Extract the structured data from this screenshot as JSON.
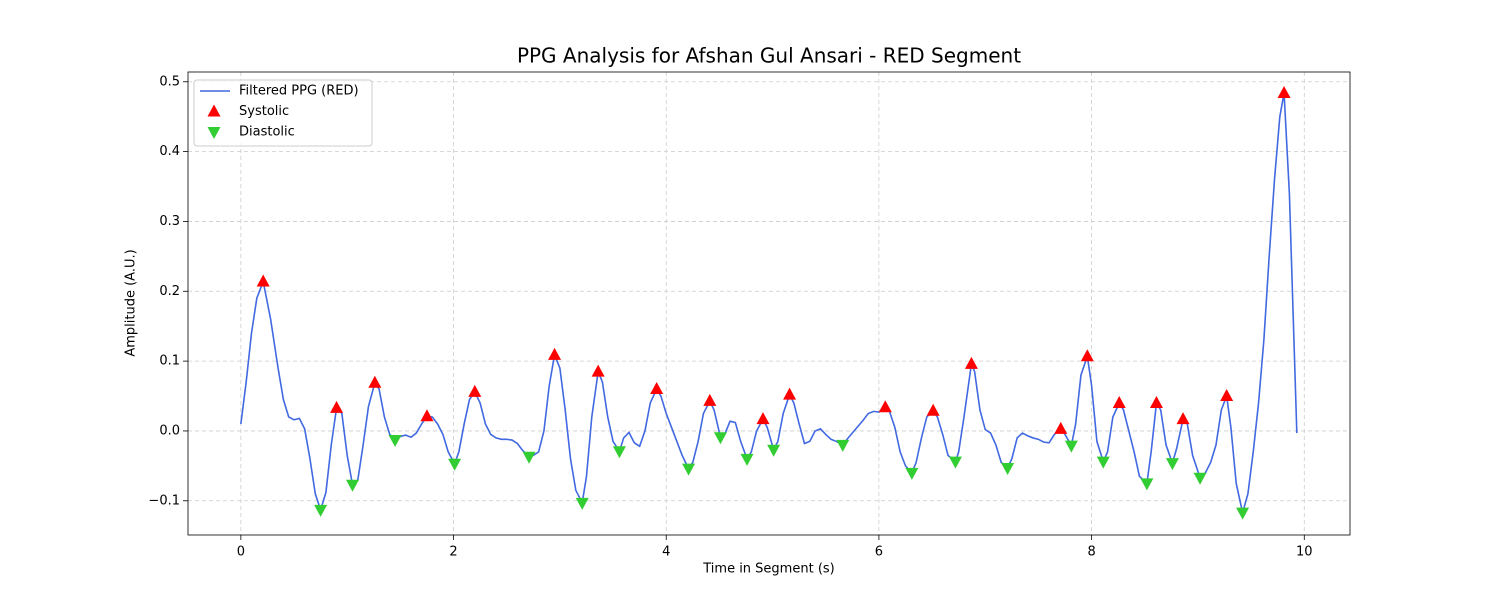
{
  "chart_data": {
    "type": "line",
    "title": "PPG Analysis for Afshan Gul Ansari - RED Segment",
    "x_label": "Time in Segment (s)",
    "y_label": "Amplitude (A.U.)",
    "xlim": [
      -0.497,
      10.43
    ],
    "ylim": [
      -0.149,
      0.514
    ],
    "xticks": [
      0,
      2,
      4,
      6,
      8,
      10
    ],
    "yticks": [
      {
        "value": -0.1,
        "label": "−0.1"
      },
      {
        "value": 0,
        "label": "0.0"
      },
      0.1,
      0.2,
      0.3,
      0.4,
      0.5
    ],
    "grid": true,
    "legend": "upper left",
    "series": [
      {
        "name": "Filtered PPG (RED)",
        "type": "line",
        "color": "#4169e1",
        "x": [
          0,
          0.05,
          0.1,
          0.15,
          0.21,
          0.28,
          0.35,
          0.4,
          0.45,
          0.5,
          0.55,
          0.6,
          0.65,
          0.7,
          0.75,
          0.8,
          0.85,
          0.9,
          0.95,
          1.0,
          1.05,
          1.1,
          1.15,
          1.2,
          1.26,
          1.3,
          1.35,
          1.4,
          1.45,
          1.5,
          1.55,
          1.6,
          1.65,
          1.7,
          1.75,
          1.8,
          1.85,
          1.9,
          1.95,
          2.01,
          2.05,
          2.1,
          2.15,
          2.2,
          2.25,
          2.3,
          2.35,
          2.4,
          2.45,
          2.5,
          2.55,
          2.6,
          2.65,
          2.71,
          2.75,
          2.8,
          2.85,
          2.9,
          2.95,
          3.0,
          3.05,
          3.1,
          3.15,
          3.21,
          3.25,
          3.3,
          3.36,
          3.4,
          3.45,
          3.5,
          3.56,
          3.6,
          3.65,
          3.7,
          3.75,
          3.8,
          3.85,
          3.91,
          3.95,
          4.0,
          4.05,
          4.1,
          4.15,
          4.21,
          4.25,
          4.3,
          4.35,
          4.41,
          4.45,
          4.51,
          4.55,
          4.6,
          4.65,
          4.7,
          4.76,
          4.8,
          4.85,
          4.91,
          4.95,
          5.01,
          5.05,
          5.1,
          5.16,
          5.2,
          5.25,
          5.3,
          5.35,
          5.4,
          5.45,
          5.5,
          5.55,
          5.6,
          5.66,
          5.7,
          5.75,
          5.8,
          5.85,
          5.9,
          5.95,
          6.0,
          6.06,
          6.1,
          6.15,
          6.2,
          6.25,
          6.31,
          6.35,
          6.4,
          6.45,
          6.51,
          6.55,
          6.6,
          6.65,
          6.72,
          6.75,
          6.8,
          6.87,
          6.9,
          6.95,
          7.0,
          7.05,
          7.1,
          7.15,
          7.21,
          7.25,
          7.3,
          7.35,
          7.4,
          7.45,
          7.5,
          7.55,
          7.6,
          7.65,
          7.71,
          7.75,
          7.81,
          7.85,
          7.9,
          7.96,
          8.0,
          8.05,
          8.11,
          8.15,
          8.2,
          8.26,
          8.3,
          8.35,
          8.4,
          8.45,
          8.52,
          8.56,
          8.61,
          8.65,
          8.7,
          8.76,
          8.8,
          8.86,
          8.9,
          8.95,
          9.02,
          9.07,
          9.12,
          9.17,
          9.22,
          9.27,
          9.31,
          9.36,
          9.42,
          9.47,
          9.52,
          9.57,
          9.62,
          9.67,
          9.72,
          9.77,
          9.81,
          9.86,
          9.93
        ],
        "values": [
          0.01,
          0.07,
          0.14,
          0.19,
          0.214,
          0.16,
          0.09,
          0.045,
          0.02,
          0.016,
          0.018,
          0.003,
          -0.04,
          -0.09,
          -0.113,
          -0.088,
          -0.02,
          0.033,
          0.025,
          -0.035,
          -0.077,
          -0.07,
          -0.02,
          0.035,
          0.069,
          0.06,
          0.02,
          -0.005,
          -0.013,
          -0.008,
          -0.006,
          -0.009,
          -0.003,
          0.01,
          0.021,
          0.02,
          0.01,
          -0.005,
          -0.03,
          -0.047,
          -0.03,
          0.01,
          0.045,
          0.056,
          0.04,
          0.01,
          -0.005,
          -0.01,
          -0.012,
          -0.012,
          -0.013,
          -0.018,
          -0.028,
          -0.037,
          -0.035,
          -0.03,
          0.0,
          0.065,
          0.109,
          0.09,
          0.03,
          -0.04,
          -0.085,
          -0.103,
          -0.065,
          0.02,
          0.085,
          0.07,
          0.02,
          -0.015,
          -0.029,
          -0.01,
          -0.002,
          -0.017,
          -0.022,
          0.0,
          0.04,
          0.06,
          0.05,
          0.025,
          0.005,
          -0.015,
          -0.035,
          -0.054,
          -0.045,
          -0.015,
          0.025,
          0.043,
          0.03,
          -0.009,
          -0.005,
          0.014,
          0.012,
          -0.015,
          -0.04,
          -0.03,
          0.0,
          0.017,
          0.005,
          -0.027,
          -0.015,
          0.025,
          0.052,
          0.04,
          0.01,
          -0.018,
          -0.015,
          0.0,
          0.003,
          -0.005,
          -0.012,
          -0.015,
          -0.02,
          -0.012,
          -0.003,
          0.006,
          0.015,
          0.025,
          0.028,
          0.027,
          0.034,
          0.028,
          0.005,
          -0.03,
          -0.05,
          -0.06,
          -0.045,
          -0.01,
          0.02,
          0.029,
          0.02,
          -0.005,
          -0.035,
          -0.044,
          -0.03,
          0.02,
          0.096,
          0.085,
          0.03,
          0.002,
          -0.003,
          -0.02,
          -0.045,
          -0.053,
          -0.04,
          -0.01,
          -0.003,
          -0.007,
          -0.01,
          -0.012,
          -0.016,
          -0.017,
          -0.005,
          0.003,
          -0.005,
          -0.021,
          0.01,
          0.08,
          0.107,
          0.065,
          -0.015,
          -0.044,
          -0.03,
          0.02,
          0.04,
          0.03,
          0.0,
          -0.03,
          -0.065,
          -0.075,
          -0.03,
          0.04,
          0.03,
          -0.02,
          -0.046,
          -0.025,
          0.017,
          0.01,
          -0.035,
          -0.067,
          -0.06,
          -0.045,
          -0.02,
          0.03,
          0.05,
          0.005,
          -0.075,
          -0.117,
          -0.09,
          -0.03,
          0.04,
          0.13,
          0.25,
          0.36,
          0.45,
          0.484,
          0.34,
          -0.003
        ]
      },
      {
        "name": "Systolic",
        "type": "scatter",
        "marker": "up",
        "color": "#ff0000",
        "x": [
          0.21,
          0.9,
          1.26,
          1.75,
          2.2,
          2.95,
          3.36,
          3.91,
          4.41,
          4.91,
          5.16,
          6.06,
          6.51,
          6.87,
          7.71,
          7.96,
          8.26,
          8.61,
          8.86,
          9.27,
          9.81
        ],
        "values": [
          0.214,
          0.033,
          0.069,
          0.021,
          0.056,
          0.109,
          0.085,
          0.06,
          0.043,
          0.017,
          0.052,
          0.034,
          0.029,
          0.096,
          0.003,
          0.107,
          0.04,
          0.04,
          0.017,
          0.05,
          0.484
        ]
      },
      {
        "name": "Diastolic",
        "type": "scatter",
        "marker": "down",
        "color": "#32cd32",
        "x": [
          0.75,
          1.05,
          1.45,
          2.01,
          2.71,
          3.21,
          3.56,
          4.21,
          4.51,
          4.76,
          5.01,
          5.66,
          6.31,
          6.72,
          7.21,
          7.81,
          8.11,
          8.52,
          8.76,
          9.02,
          9.42
        ],
        "values": [
          -0.113,
          -0.077,
          -0.013,
          -0.047,
          -0.037,
          -0.103,
          -0.029,
          -0.054,
          -0.009,
          -0.04,
          -0.027,
          -0.02,
          -0.06,
          -0.044,
          -0.053,
          -0.021,
          -0.044,
          -0.075,
          -0.046,
          -0.067,
          -0.117
        ]
      }
    ]
  }
}
